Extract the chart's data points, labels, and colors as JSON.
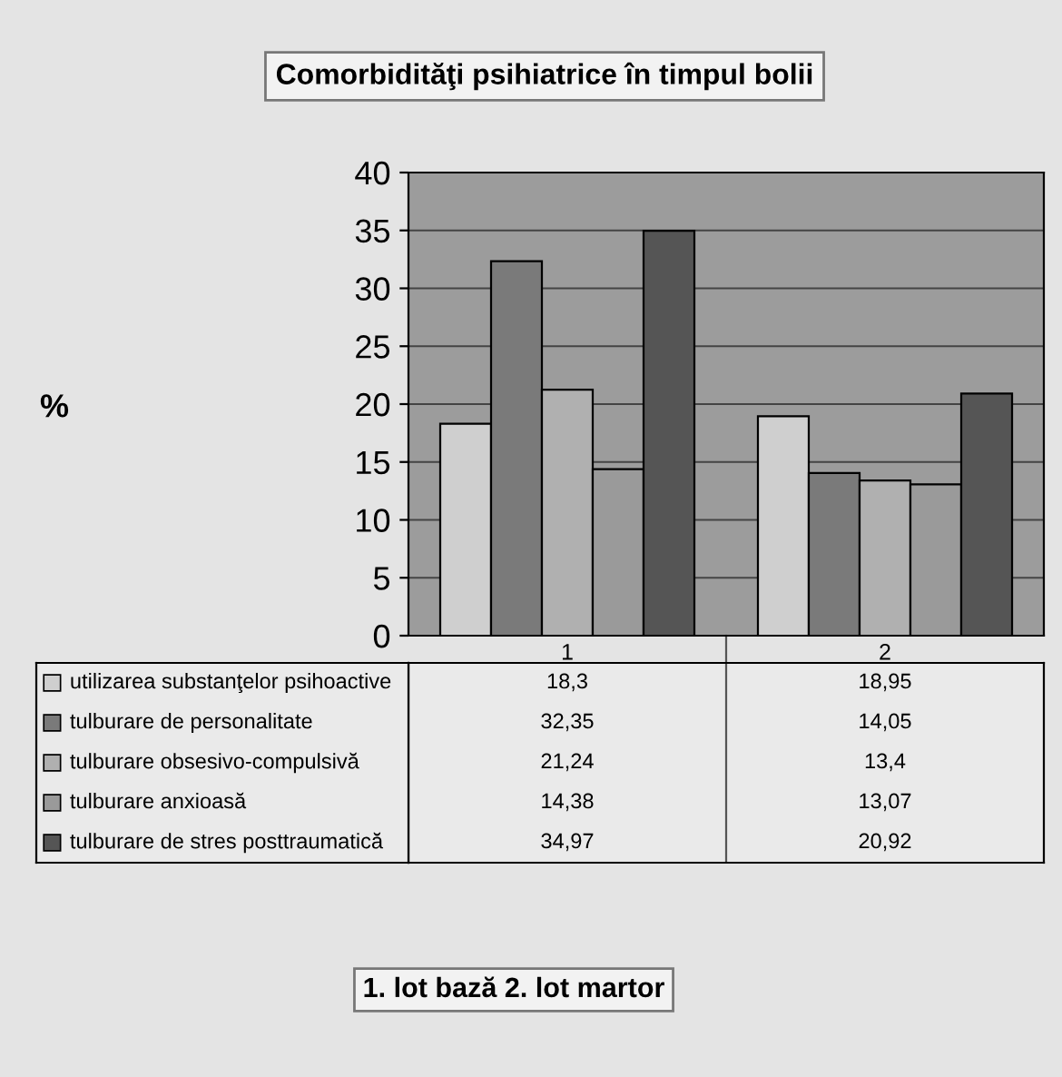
{
  "chart_data": {
    "type": "bar",
    "title": "Comorbidităţi psihiatrice în timpul bolii",
    "annotations": [
      "%",
      "1. lot bază 2. lot martor"
    ],
    "categories": [
      "1",
      "2"
    ],
    "series": [
      {
        "name": "utilizarea substanţelor psihoactive",
        "color": "#cfcfcf",
        "values": [
          18.3,
          18.95
        ],
        "value_labels": [
          "18,3",
          "18,95"
        ]
      },
      {
        "name": "tulburare de personalitate",
        "color": "#7a7a7a",
        "values": [
          32.35,
          14.05
        ],
        "value_labels": [
          "32,35",
          "14,05"
        ]
      },
      {
        "name": "tulburare obsesivo-compulsivă",
        "color": "#b0b0b0",
        "values": [
          21.24,
          13.4
        ],
        "value_labels": [
          "21,24",
          "13,4"
        ]
      },
      {
        "name": "tulburare anxioasă",
        "color": "#9a9a9a",
        "values": [
          14.38,
          13.07
        ],
        "value_labels": [
          "14,38",
          "13,07"
        ]
      },
      {
        "name": "tulburare de stres posttraumatică",
        "color": "#555555",
        "values": [
          34.97,
          20.92
        ],
        "value_labels": [
          "34,97",
          "20,92"
        ]
      }
    ],
    "ylim": [
      0,
      40
    ],
    "yticks": [
      0,
      5,
      10,
      15,
      20,
      25,
      30,
      35,
      40
    ],
    "grid": "y",
    "legend": "bottom"
  }
}
